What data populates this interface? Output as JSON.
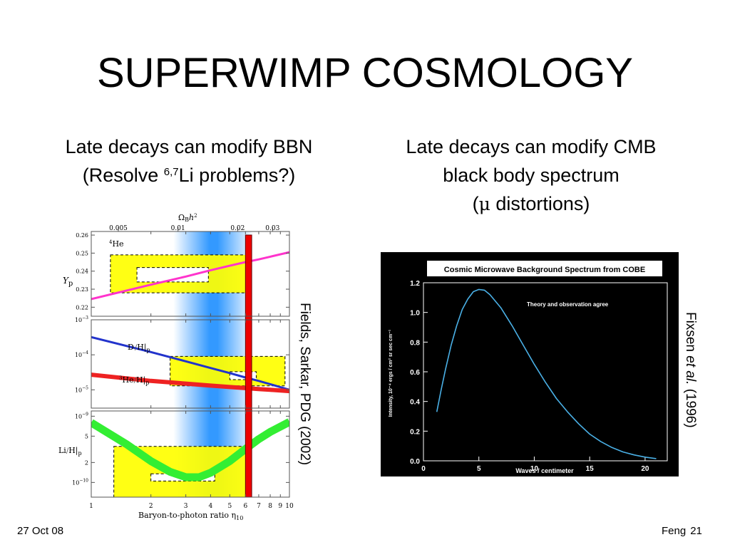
{
  "slide": {
    "title": "SUPERWIMP COSMOLOGY",
    "left_caption": {
      "line1": "Late decays can modify BBN",
      "line2_prefix": "(Resolve ",
      "line2_sup": "6,7",
      "line2_suffix": "Li problems?)"
    },
    "right_caption": {
      "line1": "Late decays can modify CMB",
      "line2": "black body spectrum",
      "line3_prefix": "(",
      "line3_mu": "μ",
      "line3_suffix": " distortions)"
    },
    "left_credit": "Fields, Sarkar, PDG (2002)",
    "right_credit_prefix": "Fixsen ",
    "right_credit_italic": "et al.",
    "right_credit_suffix": " (1996)",
    "footer_date": "27 Oct 08",
    "footer_author": "Feng",
    "footer_page": "21"
  },
  "chart_data": [
    {
      "type": "line",
      "figure": "bbn",
      "top_axis": {
        "label": "Ω",
        "label_sub": "B",
        "label_suffix": "h",
        "label_sup": "2",
        "ticks": [
          "0.005",
          "0.01",
          "0.02",
          "0.03"
        ],
        "tick_values_eta": [
          1.37,
          2.74,
          5.48,
          8.22
        ]
      },
      "x_axis": {
        "label": "Baryon-to-photon ratio η",
        "label_sub": "10",
        "scale": "log",
        "range": [
          1,
          10
        ],
        "ticks": [
          "1",
          "2",
          "3",
          "4",
          "5",
          "6",
          "7",
          "8",
          "9",
          "10"
        ]
      },
      "highlight_band": {
        "eta_range": [
          2.6,
          6.6
        ],
        "peak_eta": 4.6,
        "color": "#3399ff"
      },
      "cmb_band": {
        "eta_range": [
          6.0,
          6.45
        ],
        "color": "#ff0000"
      },
      "panels": [
        {
          "name": "He4",
          "label_sup": "4",
          "label": "He",
          "ylabel": "Y",
          "ylabel_sub": "p",
          "scale": "linear",
          "ylim": [
            0.215,
            0.262
          ],
          "ticks": [
            "0.26",
            "0.25",
            "0.24",
            "0.23",
            "0.22"
          ],
          "tick_values": [
            0.26,
            0.25,
            0.24,
            0.23,
            0.22
          ],
          "obs_box": {
            "eta": [
              1.25,
              6.2
            ],
            "y": [
              0.228,
              0.249
            ]
          },
          "obs_inner_box": {
            "eta": [
              1.7,
              3.9
            ],
            "y": [
              0.234,
              0.242
            ]
          },
          "series": [
            {
              "color": "#ff33cc",
              "eta": [
                1,
                2,
                3,
                4,
                5,
                6,
                7,
                8,
                10
              ],
              "y": [
                0.2245,
                0.2325,
                0.237,
                0.2405,
                0.243,
                0.245,
                0.2465,
                0.248,
                0.2505
              ]
            }
          ]
        },
        {
          "name": "D-He3",
          "ylabel": "",
          "scale": "log",
          "ylim": [
            3e-06,
            0.001
          ],
          "ticks": [
            "10",
            "10",
            "10"
          ],
          "tick_exps": [
            "−3",
            "−4",
            "−5"
          ],
          "tick_values": [
            0.001,
            0.0001,
            1e-05
          ],
          "series": [
            {
              "name_main": "D",
              "name_tail": "H|",
              "name_sub": "p",
              "color": "#2233cc",
              "eta": [
                1,
                2,
                3,
                4,
                5,
                6,
                7,
                8,
                10
              ],
              "y": [
                0.00032,
                0.00012,
                6.5e-05,
                4.2e-05,
                3e-05,
                2.25e-05,
                1.8e-05,
                1.45e-05,
                1e-05
              ]
            },
            {
              "name_sup": "3",
              "name_main": "He",
              "name_tail": "H|",
              "name_sub": "p",
              "color": "#ee2222",
              "eta": [
                1,
                2,
                3,
                4,
                5,
                6,
                7,
                8,
                10
              ],
              "y": [
                2.7e-05,
                1.8e-05,
                1.5e-05,
                1.32e-05,
                1.2e-05,
                1.12e-05,
                1.05e-05,
                1e-05,
                9.2e-06
              ]
            }
          ],
          "obs_box": {
            "eta": [
              2.5,
              9.5
            ],
            "y": [
              1.3e-05,
              9e-05
            ]
          },
          "obs_inner_box": {
            "eta": [
              5.0,
              6.8
            ],
            "y": [
              1.95e-05,
              3.3e-05
            ]
          }
        },
        {
          "name": "Li7",
          "ylabel": "Li",
          "ylabel_tail": "H|",
          "ylabel_sub": "p",
          "scale": "log",
          "ylim": [
            6e-11,
            1.2e-09
          ],
          "ticks": [
            "10",
            "5",
            "2",
            "10"
          ],
          "tick_exps": [
            "−9",
            "",
            "",
            "−10"
          ],
          "tick_values": [
            1e-09,
            5e-10,
            2e-10,
            1e-10
          ],
          "obs_box": {
            "eta": [
              1.3,
              6.2
            ],
            "y": [
              6e-11,
              3.5e-10
            ]
          },
          "obs_inner_box": {
            "eta": [
              2.0,
              4.2
            ],
            "y": [
              1.05e-10,
              1.35e-10
            ]
          },
          "series": [
            {
              "color": "#33ee33",
              "eta": [
                1,
                1.5,
                2,
                2.5,
                3,
                3.5,
                4,
                5,
                6,
                7,
                8,
                10
              ],
              "y": [
                8e-10,
                3.8e-10,
                2.1e-10,
                1.45e-10,
                1.2e-10,
                1.2e-10,
                1.4e-10,
                2.1e-10,
                3.2e-10,
                4.5e-10,
                5.8e-10,
                8.2e-10
              ]
            }
          ]
        }
      ]
    },
    {
      "type": "line",
      "figure": "cobe",
      "title": "Cosmic Microwave Background Spectrum from COBE",
      "annotation": "Theory and observation agree",
      "xlabel": "Waves / centimeter",
      "ylabel": "Intensity, 10⁻⁴ ergs / cm² sr sec cm⁻¹",
      "xlim": [
        0,
        22
      ],
      "ylim": [
        0,
        1.2
      ],
      "xticks": [
        0,
        5,
        10,
        15,
        20
      ],
      "yticks": [
        0.0,
        0.2,
        0.4,
        0.6,
        0.8,
        1.0,
        1.2
      ],
      "ytick_labels": [
        "0.0",
        "0.2",
        "0.4",
        "0.6",
        "0.8",
        "1.0",
        "1.2"
      ],
      "curve_color": "#4ab0e6",
      "series": [
        {
          "x": [
            1.2,
            1.6,
            2,
            2.5,
            3,
            3.5,
            4,
            4.5,
            5,
            5.5,
            6,
            7,
            8,
            9,
            10,
            11,
            12,
            13,
            14,
            15,
            16,
            17,
            18,
            19,
            20,
            21
          ],
          "y": [
            0.33,
            0.48,
            0.62,
            0.78,
            0.91,
            1.02,
            1.09,
            1.14,
            1.155,
            1.15,
            1.12,
            1.03,
            0.91,
            0.78,
            0.65,
            0.53,
            0.42,
            0.33,
            0.25,
            0.18,
            0.13,
            0.09,
            0.06,
            0.04,
            0.025,
            0.015
          ]
        }
      ]
    }
  ]
}
